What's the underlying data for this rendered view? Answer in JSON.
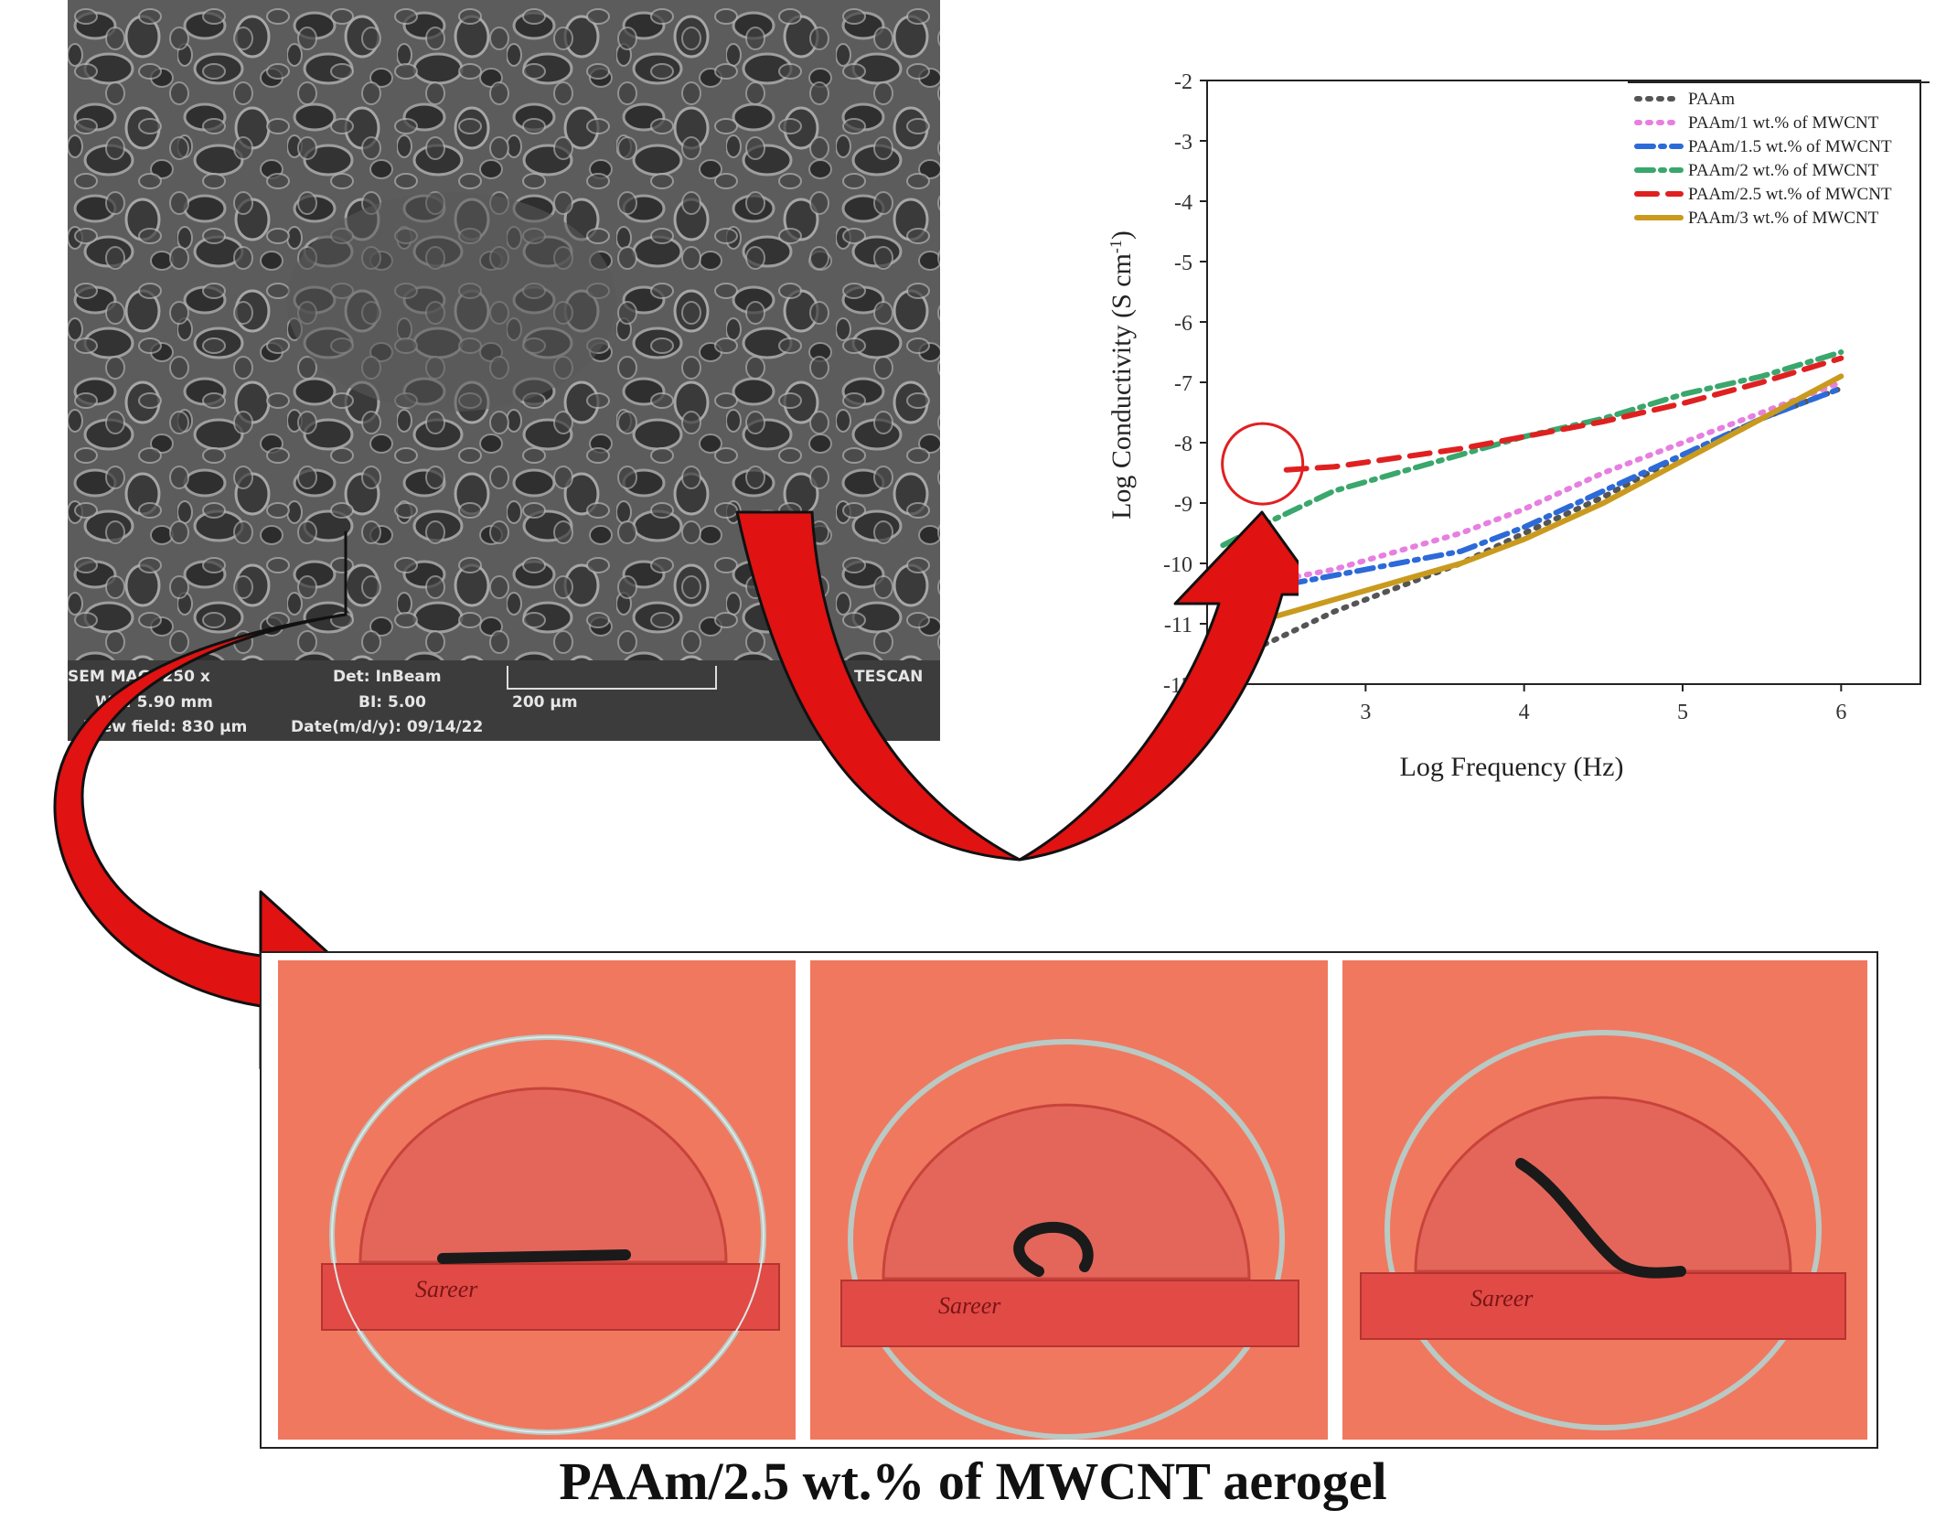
{
  "sem": {
    "mag": "SEM MAG: 250 x",
    "det": "Det: InBeam",
    "wd": "WD: 5.90 mm",
    "bi": "BI: 5.00",
    "view_field": "View field: 830 μm",
    "date": "Date(m/d/y): 09/14/22",
    "scale_label": "200 μm",
    "brand": "TESCAN"
  },
  "caption": "PAAm/2.5 wt.% of MWCNT aerogel",
  "ruler": {
    "brand": "Sareer"
  },
  "chart_data": {
    "type": "line",
    "xlabel": "Log Frequency (Hz)",
    "ylabel_prefix": "Log Conductivity (S cm",
    "ylabel_exp": "-1",
    "ylabel_suffix": ")",
    "xlim": [
      2.0,
      6.5
    ],
    "ylim": [
      -12,
      -2
    ],
    "xticks": [
      3,
      4,
      5,
      6
    ],
    "yticks": [
      -2,
      -3,
      -4,
      -5,
      -6,
      -7,
      -8,
      -9,
      -10,
      -11,
      -12
    ],
    "legend_position": "top-right",
    "series": [
      {
        "name": "PAAm",
        "color": "#555555",
        "style": "dot",
        "x": [
          2.1,
          2.4,
          2.8,
          3.2,
          3.6,
          4.0,
          4.5,
          5.0,
          5.5,
          6.0
        ],
        "y": [
          -11.6,
          -11.3,
          -10.8,
          -10.4,
          -10.0,
          -9.5,
          -8.9,
          -8.2,
          -7.6,
          -7.1
        ]
      },
      {
        "name": "PAAm/1 wt.% of MWCNT",
        "color": "#e77fe0",
        "style": "dot",
        "x": [
          2.1,
          2.4,
          2.8,
          3.2,
          3.6,
          4.0,
          4.5,
          5.0,
          5.5,
          6.0
        ],
        "y": [
          -10.6,
          -10.3,
          -10.1,
          -9.8,
          -9.5,
          -9.1,
          -8.5,
          -8.0,
          -7.5,
          -7.0
        ]
      },
      {
        "name": "PAAm/1.5 wt.% of MWCNT",
        "color": "#2c6ad8",
        "style": "dashdot",
        "x": [
          2.1,
          2.4,
          2.8,
          3.2,
          3.6,
          4.0,
          4.5,
          5.0,
          5.5,
          6.0
        ],
        "y": [
          -10.7,
          -10.4,
          -10.2,
          -10.0,
          -9.8,
          -9.4,
          -8.8,
          -8.2,
          -7.6,
          -7.1
        ]
      },
      {
        "name": "PAAm/2 wt.% of MWCNT",
        "color": "#3aa76d",
        "style": "dashdot",
        "x": [
          2.1,
          2.4,
          2.8,
          3.2,
          3.6,
          4.0,
          4.5,
          5.0,
          5.5,
          6.0
        ],
        "y": [
          -9.7,
          -9.3,
          -8.8,
          -8.5,
          -8.2,
          -7.9,
          -7.6,
          -7.2,
          -6.9,
          -6.5
        ]
      },
      {
        "name": "PAAm/2.5 wt.% of MWCNT",
        "color": "#e02020",
        "style": "dash",
        "x": [
          2.5,
          2.8,
          3.2,
          3.6,
          4.0,
          4.5,
          5.0,
          5.5,
          6.0
        ],
        "y": [
          -8.45,
          -8.4,
          -8.25,
          -8.1,
          -7.9,
          -7.65,
          -7.35,
          -7.0,
          -6.6
        ]
      },
      {
        "name": "PAAm/3 wt.% of MWCNT",
        "color": "#c99a1e",
        "style": "solid",
        "x": [
          2.1,
          2.4,
          2.8,
          3.2,
          3.6,
          4.0,
          4.5,
          5.0,
          5.5,
          6.0
        ],
        "y": [
          -11.2,
          -10.9,
          -10.6,
          -10.3,
          -10.0,
          -9.6,
          -9.0,
          -8.3,
          -7.6,
          -6.9
        ]
      }
    ]
  }
}
